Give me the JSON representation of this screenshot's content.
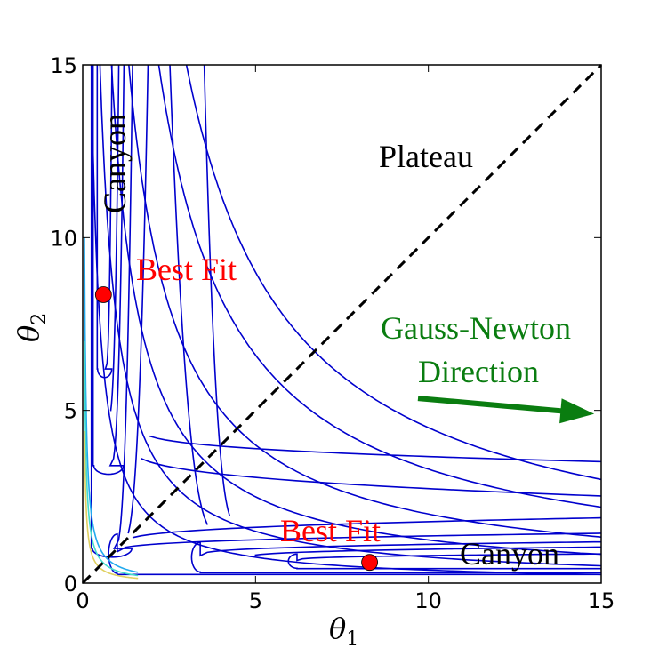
{
  "chart_data": {
    "type": "contour",
    "xlabel": "θ",
    "xlabel_sub": "1",
    "ylabel": "θ",
    "ylabel_sub": "2",
    "xlim": [
      0,
      15
    ],
    "ylim": [
      0,
      15
    ],
    "xticks": [
      "0",
      "5",
      "10",
      "15"
    ],
    "yticks": [
      "0",
      "5",
      "10",
      "15"
    ],
    "grid": false,
    "colors": {
      "contour_dark": "#0000cd",
      "contour_light": "#22aaee",
      "contour_cyan": "#44ddcc",
      "contour_yellow": "#e0d060",
      "best_fit": "#ff0000",
      "arrow": "#0a7d10",
      "annotation_red": "#ff0000",
      "annotation_green": "#0a7d10",
      "diagonal": "#000000"
    },
    "contour_levels_hyperbolic": [
      3.75,
      7.5,
      12.5,
      20,
      33,
      45
    ],
    "best_fit_points": [
      {
        "x": 0.6,
        "y": 8.35
      },
      {
        "x": 8.3,
        "y": 0.6
      }
    ],
    "diagonal": {
      "from": [
        0,
        0
      ],
      "to": [
        15,
        15
      ],
      "style": "dashed"
    },
    "arrow": {
      "from": [
        9.7,
        5.35
      ],
      "to": [
        14.8,
        4.9
      ]
    },
    "annotations": {
      "plateau": "Plateau",
      "canyon_top": "Canyon",
      "canyon_bottom": "Canyon",
      "best_fit_top": "Best Fit",
      "best_fit_bottom": "Best Fit",
      "gn_line1": "Gauss-Newton",
      "gn_line2": "Direction"
    }
  }
}
